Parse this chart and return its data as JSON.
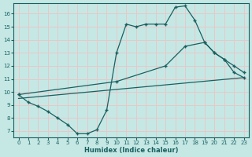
{
  "xlabel": "Humidex (Indice chaleur)",
  "background_color": "#c5e8e5",
  "grid_color": "#e8c8c8",
  "line_color": "#1a6060",
  "xlim": [
    -0.5,
    23.5
  ],
  "ylim": [
    6.5,
    16.8
  ],
  "yticks": [
    7,
    8,
    9,
    10,
    11,
    12,
    13,
    14,
    15,
    16
  ],
  "xticks": [
    0,
    1,
    2,
    3,
    4,
    5,
    6,
    7,
    8,
    9,
    10,
    11,
    12,
    13,
    14,
    15,
    16,
    17,
    18,
    19,
    20,
    21,
    22,
    23
  ],
  "curve1_x": [
    0,
    1,
    2,
    3,
    4,
    5,
    6,
    7,
    8,
    9,
    10,
    11,
    12,
    13,
    14,
    15,
    16,
    17,
    18,
    19,
    20,
    21,
    22,
    23
  ],
  "curve1_y": [
    9.8,
    9.2,
    8.9,
    8.5,
    8.0,
    7.5,
    6.8,
    6.8,
    7.1,
    8.6,
    13.0,
    15.2,
    15.0,
    15.2,
    15.2,
    15.2,
    16.5,
    16.6,
    15.5,
    13.8,
    13.0,
    12.5,
    11.5,
    11.1
  ],
  "curve2_x": [
    0,
    10,
    15,
    17,
    19,
    20,
    21,
    22,
    23
  ],
  "curve2_y": [
    9.8,
    10.8,
    12.0,
    13.5,
    13.8,
    13.0,
    12.5,
    12.0,
    11.5
  ],
  "curve3_x": [
    0,
    23
  ],
  "curve3_y": [
    9.5,
    11.1
  ]
}
